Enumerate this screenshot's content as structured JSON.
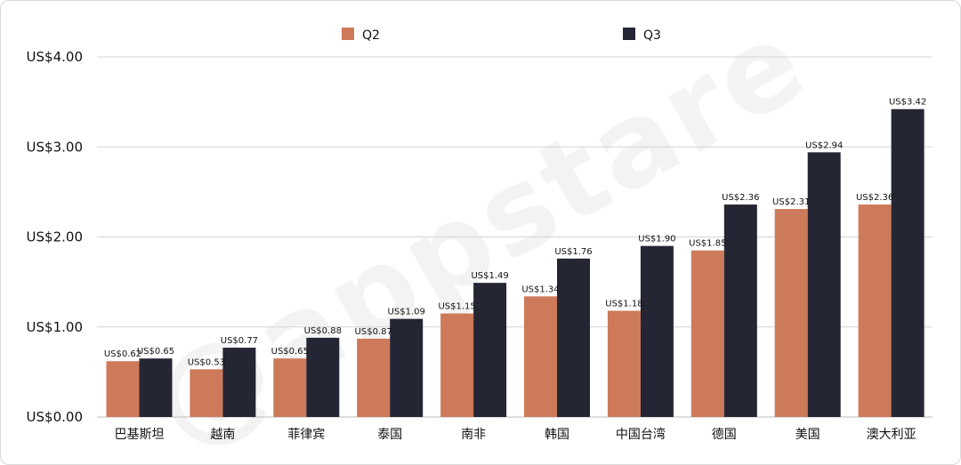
{
  "chart_data": {
    "type": "bar",
    "title": "",
    "xlabel": "",
    "ylabel": "",
    "ylim": [
      0,
      4
    ],
    "yticks": [
      "US$0.00",
      "US$1.00",
      "US$2.00",
      "US$3.00",
      "US$4.00"
    ],
    "categories": [
      "巴基斯坦",
      "越南",
      "菲律宾",
      "泰国",
      "南非",
      "韩国",
      "中国台湾",
      "德国",
      "美国",
      "澳大利亚"
    ],
    "series": [
      {
        "name": "Q2",
        "color": "#cd7a5a",
        "values": [
          0.62,
          0.53,
          0.65,
          0.87,
          1.15,
          1.34,
          1.18,
          1.85,
          2.31,
          2.36
        ],
        "labels": [
          "US$0.62",
          "US$0.53",
          "US$0.65",
          "US$0.87",
          "US$1.15",
          "US$1.34",
          "US$1.18",
          "US$1.85",
          "US$2.31",
          "US$2.36"
        ]
      },
      {
        "name": "Q3",
        "color": "#252633",
        "values": [
          0.65,
          0.77,
          0.88,
          1.09,
          1.49,
          1.76,
          1.9,
          2.36,
          2.94,
          3.42
        ],
        "labels": [
          "US$0.65",
          "US$0.77",
          "US$0.88",
          "US$1.09",
          "US$1.49",
          "US$1.76",
          "US$1.90",
          "US$2.36",
          "US$2.94",
          "US$3.42"
        ]
      }
    ],
    "grid": true,
    "legend": "top-center",
    "watermark": "@appstare"
  }
}
